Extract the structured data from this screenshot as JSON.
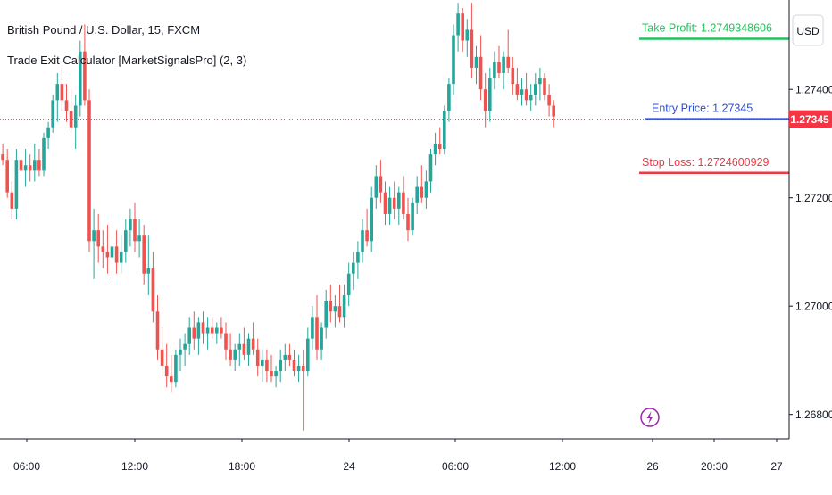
{
  "header": {
    "symbol_title": "British Pound / U.S. Dollar, 15, FXCM",
    "indicator_title": "Trade Exit Calculator [MarketSignalsPro] (2, 3)",
    "currency": "USD"
  },
  "colors": {
    "up": "#26a69a",
    "down": "#ef5350",
    "take_profit": "#22c35e",
    "entry": "#2d4ed8",
    "stop_loss": "#f23645",
    "price_tag": "#f23645",
    "grid_axis": "#131722",
    "event_icon": "#9c27b0"
  },
  "chart_data": {
    "type": "candlestick",
    "symbol": "GBPUSD",
    "timeframe": "15",
    "y_range": [
      1.26755,
      1.27565
    ],
    "y_ticks": [
      "1.27400",
      "1.27200",
      "1.27000",
      "1.26800"
    ],
    "x_ticks": [
      "06:00",
      "12:00",
      "18:00",
      "24",
      "06:00",
      "12:00",
      "26",
      "20:30",
      "27"
    ],
    "current_price": "1.27345",
    "levels": [
      {
        "name": "take_profit",
        "label": "Take Profit: 1.2749348606",
        "value": 1.2749348606
      },
      {
        "name": "entry",
        "label": "Entry Price: 1.27345",
        "value": 1.27345
      },
      {
        "name": "stop_loss",
        "label": "Stop Loss: 1.2724600929",
        "value": 1.2724600929
      }
    ],
    "candles_ohlc": [
      [
        1.2737,
        1.2737,
        1.2727,
        1.2728
      ],
      [
        1.2728,
        1.273,
        1.2726,
        1.2727
      ],
      [
        1.2727,
        1.2729,
        1.272,
        1.2721
      ],
      [
        1.2721,
        1.2723,
        1.2716,
        1.2718
      ],
      [
        1.2718,
        1.2729,
        1.2716,
        1.2727
      ],
      [
        1.2727,
        1.273,
        1.2724,
        1.2725
      ],
      [
        1.2725,
        1.2729,
        1.2722,
        1.2726
      ],
      [
        1.2726,
        1.2728,
        1.2723,
        1.2725
      ],
      [
        1.2725,
        1.273,
        1.2723,
        1.2727
      ],
      [
        1.2727,
        1.2729,
        1.2724,
        1.2725
      ],
      [
        1.2725,
        1.2732,
        1.2724,
        1.2731
      ],
      [
        1.2731,
        1.2734,
        1.2729,
        1.2733
      ],
      [
        1.2733,
        1.2739,
        1.2732,
        1.2738
      ],
      [
        1.2738,
        1.2743,
        1.2734,
        1.2741
      ],
      [
        1.2741,
        1.2744,
        1.2736,
        1.2738
      ],
      [
        1.2738,
        1.2741,
        1.2734,
        1.2736
      ],
      [
        1.2736,
        1.274,
        1.2732,
        1.2733
      ],
      [
        1.2733,
        1.2739,
        1.2729,
        1.2737
      ],
      [
        1.2737,
        1.2749,
        1.2735,
        1.2747
      ],
      [
        1.2747,
        1.2752,
        1.2737,
        1.2738
      ],
      [
        1.2738,
        1.274,
        1.271,
        1.2712
      ],
      [
        1.2712,
        1.2718,
        1.2705,
        1.2714
      ],
      [
        1.2714,
        1.2717,
        1.2708,
        1.2711
      ],
      [
        1.2711,
        1.2714,
        1.2707,
        1.271
      ],
      [
        1.271,
        1.2715,
        1.2706,
        1.2709
      ],
      [
        1.2709,
        1.2713,
        1.2705,
        1.2711
      ],
      [
        1.2711,
        1.2714,
        1.2706,
        1.2708
      ],
      [
        1.2708,
        1.2713,
        1.2706,
        1.271
      ],
      [
        1.271,
        1.2716,
        1.2708,
        1.2714
      ],
      [
        1.2714,
        1.2718,
        1.2711,
        1.2716
      ],
      [
        1.2716,
        1.2719,
        1.271,
        1.2712
      ],
      [
        1.2712,
        1.2716,
        1.2709,
        1.2713
      ],
      [
        1.2713,
        1.2715,
        1.2704,
        1.2706
      ],
      [
        1.2706,
        1.2713,
        1.2702,
        1.2707
      ],
      [
        1.2707,
        1.271,
        1.2697,
        1.2699
      ],
      [
        1.2699,
        1.2702,
        1.269,
        1.2692
      ],
      [
        1.2692,
        1.2696,
        1.2687,
        1.2689
      ],
      [
        1.2689,
        1.2693,
        1.2685,
        1.2687
      ],
      [
        1.2687,
        1.2691,
        1.2684,
        1.2686
      ],
      [
        1.2686,
        1.2692,
        1.2685,
        1.2691
      ],
      [
        1.2691,
        1.2694,
        1.2688,
        1.2692
      ],
      [
        1.2692,
        1.2695,
        1.2689,
        1.2693
      ],
      [
        1.2693,
        1.2698,
        1.2691,
        1.2696
      ],
      [
        1.2696,
        1.2699,
        1.2692,
        1.2694
      ],
      [
        1.2694,
        1.2698,
        1.2691,
        1.2697
      ],
      [
        1.2697,
        1.2699,
        1.2693,
        1.2695
      ],
      [
        1.2695,
        1.2698,
        1.2692,
        1.2696
      ],
      [
        1.2696,
        1.2698,
        1.2694,
        1.2695
      ],
      [
        1.2695,
        1.2697,
        1.2693,
        1.2696
      ],
      [
        1.2696,
        1.2698,
        1.2694,
        1.2695
      ],
      [
        1.2695,
        1.2697,
        1.269,
        1.2692
      ],
      [
        1.2692,
        1.2695,
        1.2689,
        1.269
      ],
      [
        1.269,
        1.2693,
        1.2688,
        1.2692
      ],
      [
        1.2692,
        1.2695,
        1.2689,
        1.2693
      ],
      [
        1.2693,
        1.2696,
        1.269,
        1.2691
      ],
      [
        1.2691,
        1.2695,
        1.2689,
        1.2694
      ],
      [
        1.2694,
        1.2697,
        1.2691,
        1.2692
      ],
      [
        1.2692,
        1.2694,
        1.2687,
        1.2689
      ],
      [
        1.2689,
        1.2692,
        1.2686,
        1.269
      ],
      [
        1.269,
        1.2692,
        1.2686,
        1.2688
      ],
      [
        1.2688,
        1.2691,
        1.2686,
        1.2687
      ],
      [
        1.2687,
        1.2689,
        1.2685,
        1.2688
      ],
      [
        1.2688,
        1.2692,
        1.2686,
        1.269
      ],
      [
        1.269,
        1.2693,
        1.2688,
        1.2691
      ],
      [
        1.2691,
        1.2693,
        1.2689,
        1.269
      ],
      [
        1.269,
        1.2692,
        1.2687,
        1.2688
      ],
      [
        1.2688,
        1.2691,
        1.2686,
        1.2689
      ],
      [
        1.2689,
        1.2692,
        1.2677,
        1.2688
      ],
      [
        1.2688,
        1.2696,
        1.2687,
        1.2694
      ],
      [
        1.2694,
        1.27,
        1.2692,
        1.2698
      ],
      [
        1.2698,
        1.2702,
        1.269,
        1.2692
      ],
      [
        1.2692,
        1.2697,
        1.269,
        1.2696
      ],
      [
        1.2696,
        1.2703,
        1.2694,
        1.2701
      ],
      [
        1.2701,
        1.2704,
        1.2697,
        1.2699
      ],
      [
        1.2699,
        1.2702,
        1.2696,
        1.27
      ],
      [
        1.27,
        1.2704,
        1.2697,
        1.2698
      ],
      [
        1.2698,
        1.2704,
        1.2696,
        1.2702
      ],
      [
        1.2702,
        1.2708,
        1.27,
        1.2706
      ],
      [
        1.2706,
        1.271,
        1.2703,
        1.2708
      ],
      [
        1.2708,
        1.2712,
        1.2705,
        1.271
      ],
      [
        1.271,
        1.2716,
        1.2708,
        1.2714
      ],
      [
        1.2714,
        1.2718,
        1.2711,
        1.2712
      ],
      [
        1.2712,
        1.2722,
        1.271,
        1.272
      ],
      [
        1.272,
        1.2726,
        1.2718,
        1.2724
      ],
      [
        1.2724,
        1.2727,
        1.2719,
        1.2721
      ],
      [
        1.2721,
        1.2723,
        1.2715,
        1.2717
      ],
      [
        1.2717,
        1.2722,
        1.2715,
        1.272
      ],
      [
        1.272,
        1.2723,
        1.2716,
        1.2718
      ],
      [
        1.2718,
        1.2722,
        1.2715,
        1.2721
      ],
      [
        1.2721,
        1.2724,
        1.2716,
        1.2717
      ],
      [
        1.2717,
        1.272,
        1.2712,
        1.2714
      ],
      [
        1.2714,
        1.272,
        1.2713,
        1.2719
      ],
      [
        1.2719,
        1.2724,
        1.2717,
        1.2722
      ],
      [
        1.2722,
        1.2726,
        1.2719,
        1.272
      ],
      [
        1.272,
        1.2725,
        1.2718,
        1.2723
      ],
      [
        1.2723,
        1.2729,
        1.2721,
        1.2728
      ],
      [
        1.2728,
        1.2732,
        1.2726,
        1.273
      ],
      [
        1.273,
        1.2733,
        1.2728,
        1.2729
      ],
      [
        1.2729,
        1.2737,
        1.2728,
        1.2736
      ],
      [
        1.2736,
        1.2742,
        1.2734,
        1.2741
      ],
      [
        1.2741,
        1.2752,
        1.2739,
        1.275
      ],
      [
        1.275,
        1.2756,
        1.2747,
        1.2754
      ],
      [
        1.2754,
        1.2755,
        1.2747,
        1.2749
      ],
      [
        1.2749,
        1.2753,
        1.2746,
        1.2751
      ],
      [
        1.2751,
        1.2756,
        1.2742,
        1.2744
      ],
      [
        1.2744,
        1.2748,
        1.2741,
        1.2746
      ],
      [
        1.2746,
        1.275,
        1.2738,
        1.274
      ],
      [
        1.274,
        1.2743,
        1.2733,
        1.2736
      ],
      [
        1.2736,
        1.2744,
        1.2734,
        1.2742
      ],
      [
        1.2742,
        1.2747,
        1.274,
        1.2745
      ],
      [
        1.2745,
        1.2748,
        1.2742,
        1.2743
      ],
      [
        1.2743,
        1.2747,
        1.274,
        1.2746
      ],
      [
        1.2746,
        1.2751,
        1.2743,
        1.2744
      ],
      [
        1.2744,
        1.2746,
        1.2739,
        1.2741
      ],
      [
        1.2741,
        1.2744,
        1.2738,
        1.2739
      ],
      [
        1.2739,
        1.2742,
        1.2737,
        1.274
      ],
      [
        1.274,
        1.2743,
        1.2737,
        1.2738
      ],
      [
        1.2738,
        1.2741,
        1.2736,
        1.2739
      ],
      [
        1.2739,
        1.2743,
        1.2737,
        1.2741
      ],
      [
        1.2741,
        1.2744,
        1.2738,
        1.2742
      ],
      [
        1.2742,
        1.2743,
        1.2738,
        1.2739
      ],
      [
        1.2739,
        1.2741,
        1.2735,
        1.2737
      ],
      [
        1.2737,
        1.2738,
        1.2733,
        1.2735
      ]
    ]
  }
}
